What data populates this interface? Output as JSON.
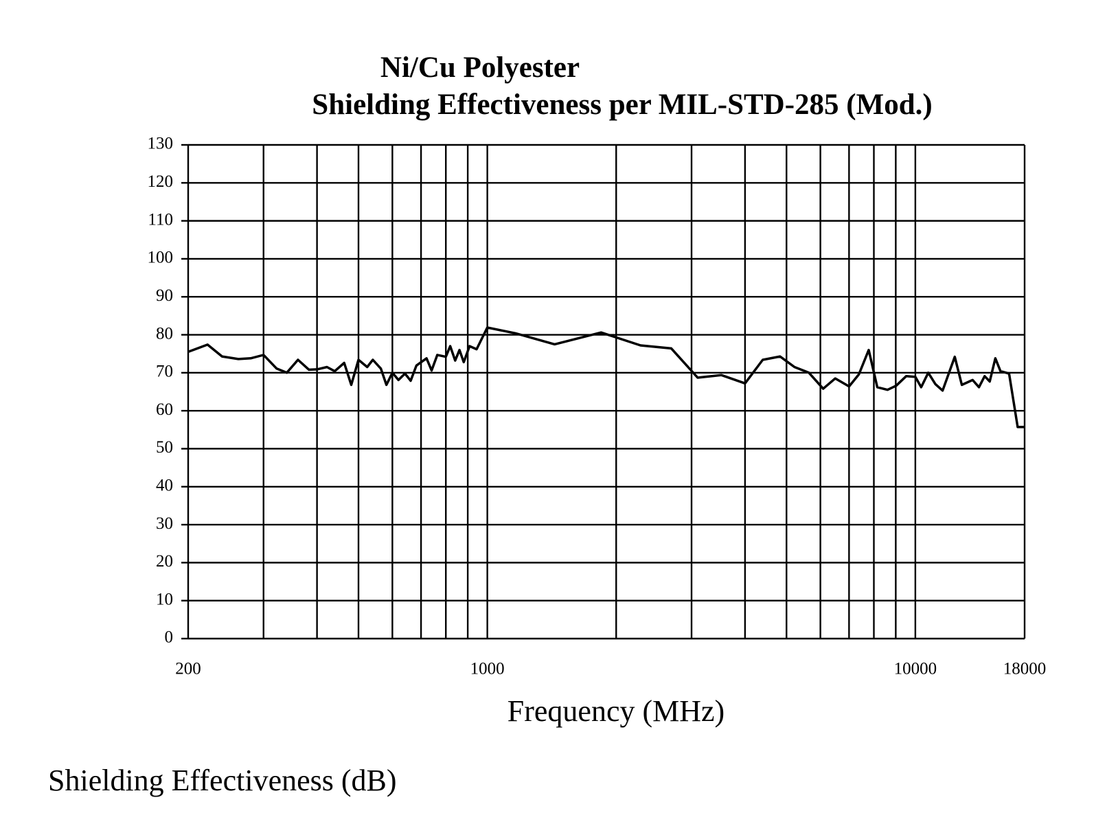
{
  "chart_data": {
    "type": "line",
    "title": "Ni/Cu Polyester",
    "subtitle": "Shielding Effectiveness per MIL-STD-285 (Mod.)",
    "xlabel": "Frequency (MHz)",
    "ylabel": "Shielding Effectiveness (dB)",
    "xscale": "log",
    "xlim": [
      200,
      18000
    ],
    "xticks": [
      200,
      1000,
      10000,
      18000
    ],
    "xminor": [
      300,
      400,
      500,
      600,
      700,
      800,
      900,
      2000,
      3000,
      4000,
      5000,
      6000,
      7000,
      8000,
      9000
    ],
    "ylim": [
      0,
      130
    ],
    "yticks": [
      0,
      10,
      20,
      30,
      40,
      50,
      60,
      70,
      80,
      90,
      100,
      110,
      120,
      130
    ],
    "grid": true,
    "series": [
      {
        "color": "#000000",
        "x": [
          200,
          222,
          240,
          262,
          280,
          300,
          322,
          340,
          361,
          383,
          400,
          422,
          440,
          463,
          481,
          500,
          524,
          540,
          564,
          581,
          600,
          620,
          642,
          662,
          683,
          721,
          741,
          764,
          800,
          819,
          841,
          861,
          881,
          909,
          944,
          1000,
          1162,
          1436,
          1844,
          2280,
          2690,
          3100,
          3520,
          4000,
          4400,
          4830,
          5220,
          5640,
          6090,
          6500,
          7000,
          7380,
          7780,
          8150,
          8610,
          9020,
          9520,
          10000,
          10320,
          10720,
          11140,
          11580,
          12360,
          12840,
          13610,
          14080,
          14520,
          14920,
          15380,
          15810,
          16560,
          17340,
          18000
        ],
        "values": [
          75.5,
          77.4,
          74.3,
          73.6,
          73.8,
          74.7,
          71.1,
          70,
          73.4,
          70.8,
          70.9,
          71.5,
          70.4,
          72.6,
          66.8,
          73.4,
          71.5,
          73.4,
          71.1,
          66.8,
          70,
          68.1,
          69.8,
          67.9,
          71.9,
          73.8,
          70.6,
          74.7,
          74.2,
          77,
          73.2,
          76,
          72.8,
          77,
          76.2,
          81.9,
          80.4,
          77.5,
          80.6,
          77.2,
          76.4,
          68.7,
          69.4,
          67.2,
          73.4,
          74.3,
          71.5,
          70,
          65.8,
          68.5,
          66.4,
          69.6,
          76,
          66.2,
          65.5,
          66.6,
          69.1,
          68.9,
          66.2,
          70,
          67,
          65.3,
          74.2,
          66.8,
          68.1,
          66.2,
          69.1,
          67.7,
          73.8,
          70.4,
          69.8,
          55.7,
          55.7
        ]
      }
    ]
  }
}
